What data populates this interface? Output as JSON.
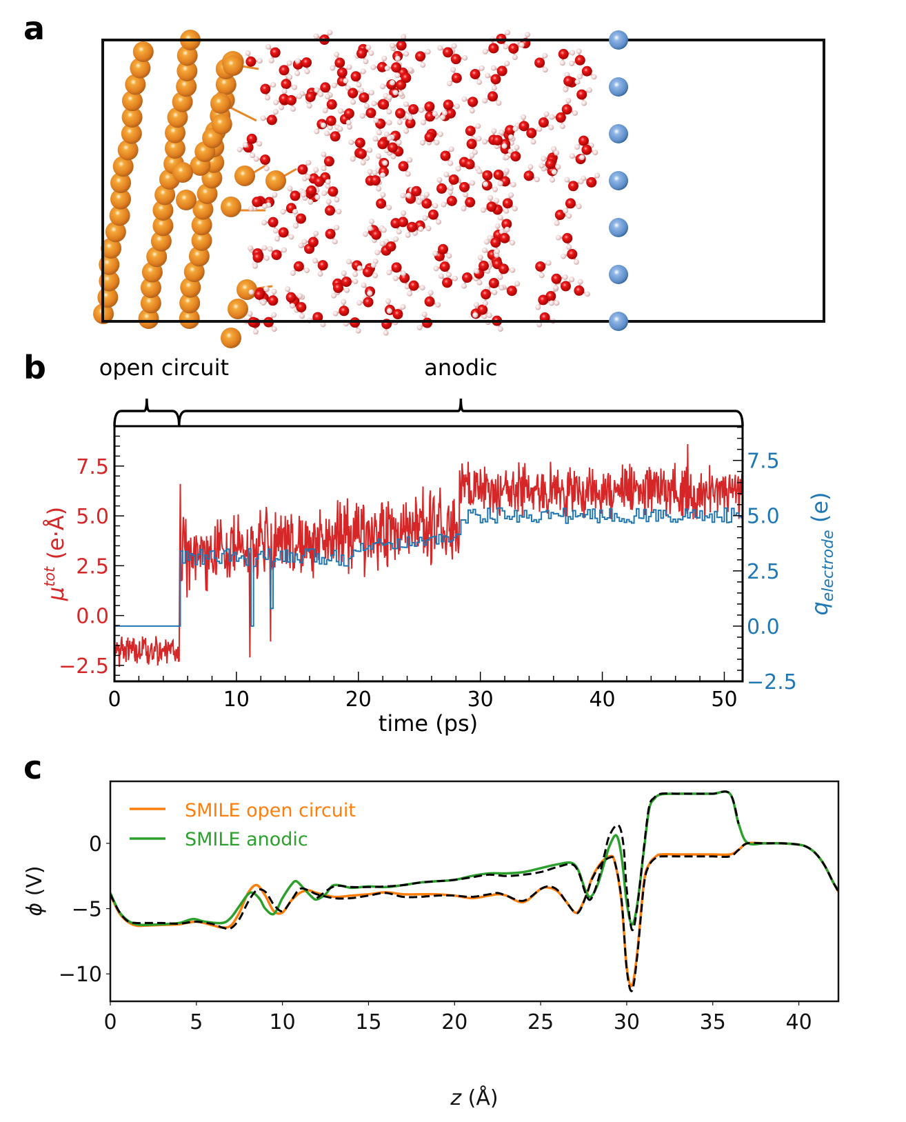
{
  "figure": {
    "panel_labels": {
      "a": "a",
      "b": "b",
      "c": "c"
    }
  },
  "panel_a": {
    "description": "Molecular dynamics snapshot: Cu electrode (orange spheres) at left, water molecules (red O, white H) in middle, counter-electrode atoms (blue spheres) at right, inside a black simulation cell outline",
    "colors": {
      "metal": "#e8872a",
      "oxygen": "#e01010",
      "hydrogen": "#f2dede",
      "counter_electrode": "#6f9bd1",
      "cell": "#000000"
    },
    "counter_electrode_atom_count": 7
  },
  "chart_data": [
    {
      "id": "panel_b",
      "type": "line",
      "title": "",
      "xlabel": "time (ps)",
      "ylabel_left": "μ^tot (e·Å)",
      "ylabel_left_main": "μ",
      "ylabel_left_sup": "tot",
      "ylabel_left_unit": " (e·Å)",
      "ylabel_right": "q_electrode (e)",
      "ylabel_right_main": "q",
      "ylabel_right_sub": "electrode",
      "ylabel_right_unit": " (e)",
      "xlim": [
        0,
        51.5
      ],
      "ylim_left": [
        -3.3,
        9.5
      ],
      "ylim_right": [
        -2.5,
        9.05
      ],
      "xticks": [
        0,
        10,
        20,
        30,
        40,
        50
      ],
      "xtick_labels": [
        "0",
        "10",
        "20",
        "30",
        "40",
        "50"
      ],
      "yticks_left": [
        -2.5,
        0.0,
        2.5,
        5.0,
        7.5
      ],
      "ytick_labels_left": [
        "−2.5",
        "0.0",
        "2.5",
        "5.0",
        "7.5"
      ],
      "yticks_right": [
        -2.5,
        0.0,
        2.5,
        5.0,
        7.5
      ],
      "ytick_labels_right": [
        "−2.5",
        "0.0",
        "2.5",
        "5.0",
        "7.5"
      ],
      "grid": false,
      "regions": [
        {
          "label": "open circuit",
          "x_start": 0,
          "x_end": 5.3
        },
        {
          "label": "anodic",
          "x_start": 5.3,
          "x_end": 51.5
        }
      ],
      "series": [
        {
          "name": "mu_tot",
          "axis": "left",
          "color": "#d62728",
          "description": "noisy dipole trace",
          "segments_mean": [
            {
              "x_start": 0,
              "x_end": 5.3,
              "mean": -1.7,
              "amplitude": 0.9
            },
            {
              "x_start": 5.3,
              "x_end": 28.3,
              "mean_start": 3.0,
              "mean_end": 4.6,
              "amplitude": 2.2
            },
            {
              "x_start": 28.3,
              "x_end": 51.5,
              "mean": 6.3,
              "amplitude": 1.6
            }
          ],
          "notable_points": [
            {
              "x": 5.4,
              "y": 6.6
            },
            {
              "x": 11.1,
              "y": -2.1
            },
            {
              "x": 12.8,
              "y": -1.3
            },
            {
              "x": 47.0,
              "y": 8.6
            }
          ]
        },
        {
          "name": "q_electrode",
          "axis": "right",
          "color": "#1f77b4",
          "description": "step trace",
          "segments_mean": [
            {
              "x_start": 0,
              "x_end": 5.3,
              "value": 0.0
            },
            {
              "x_start": 5.3,
              "x_end": 19.5,
              "mean": 3.1,
              "amplitude": 0.4
            },
            {
              "x_start": 19.5,
              "x_end": 28.3,
              "mean_start": 3.6,
              "mean_end": 4.0,
              "amplitude": 0.25
            },
            {
              "x_start": 28.3,
              "x_end": 51.5,
              "mean": 5.0,
              "amplitude": 0.35
            }
          ],
          "notable_points": [
            {
              "x": 11.1,
              "y": 0.0
            },
            {
              "x": 12.8,
              "y": 0.8
            }
          ]
        }
      ]
    },
    {
      "id": "panel_c",
      "type": "line",
      "title": "",
      "xlabel": "z (Å)",
      "xlabel_italic": "z",
      "xlabel_unit": " (Å)",
      "ylabel": "φ (V)",
      "ylabel_main": "ϕ",
      "ylabel_unit": " (V)",
      "xlim": [
        0,
        42.3
      ],
      "ylim": [
        -12.1,
        4.75
      ],
      "xticks": [
        0,
        5,
        10,
        15,
        20,
        25,
        30,
        35,
        40
      ],
      "xtick_labels": [
        "0",
        "5",
        "10",
        "15",
        "20",
        "25",
        "30",
        "35",
        "40"
      ],
      "yticks": [
        -10,
        -5,
        0
      ],
      "ytick_labels": [
        "−10",
        "−5",
        "0"
      ],
      "grid": false,
      "legend": {
        "placement": "top-left",
        "entries": [
          "SMILE open circuit",
          "SMILE anodic"
        ]
      },
      "series": [
        {
          "name": "SMILE open circuit",
          "color": "#ff7f0e",
          "style": "solid",
          "x": [
            0,
            0.5,
            1,
            1.5,
            2,
            3,
            4,
            5,
            6,
            6.5,
            7,
            7.5,
            8,
            8.5,
            9,
            9.5,
            10,
            10.5,
            11,
            11.5,
            12,
            13,
            14,
            15,
            16,
            17,
            18,
            19,
            20,
            21,
            22,
            22.5,
            23,
            24,
            25,
            25.5,
            26,
            26.5,
            27,
            27.3,
            27.7,
            28,
            28.5,
            29,
            29.3,
            29.7,
            30,
            30.3,
            30.6,
            31,
            31.3,
            31.7,
            32,
            33,
            34,
            35,
            36,
            36.5,
            37,
            38,
            39,
            40,
            40.5,
            41,
            41.5,
            42,
            42.3
          ],
          "y": [
            -3.9,
            -5.3,
            -6.0,
            -6.3,
            -6.3,
            -6.25,
            -6.2,
            -6.0,
            -6.3,
            -6.45,
            -6.3,
            -5.3,
            -3.8,
            -3.2,
            -4.0,
            -5.2,
            -5.3,
            -4.4,
            -3.8,
            -3.6,
            -3.8,
            -4.1,
            -4.0,
            -3.9,
            -3.75,
            -3.9,
            -3.9,
            -3.9,
            -4.0,
            -4.2,
            -4.0,
            -3.9,
            -4.0,
            -4.5,
            -3.5,
            -3.4,
            -3.7,
            -4.5,
            -5.3,
            -5.0,
            -3.8,
            -2.6,
            -1.5,
            -1.0,
            -1.4,
            -4.5,
            -9.5,
            -10.9,
            -8.5,
            -3.0,
            -1.6,
            -1.0,
            -0.85,
            -0.85,
            -0.85,
            -0.85,
            -0.85,
            -0.5,
            0.0,
            0.0,
            0.0,
            -0.1,
            -0.3,
            -0.8,
            -1.7,
            -3.0,
            -3.7
          ]
        },
        {
          "name": "SMILE anodic",
          "color": "#2ca02c",
          "style": "solid",
          "x": [
            0,
            0.5,
            1,
            1.5,
            2,
            3,
            4,
            4.8,
            5.5,
            6.5,
            7,
            7.5,
            8,
            8.3,
            8.7,
            9,
            9.5,
            10,
            10.5,
            10.8,
            11.2,
            11.7,
            12,
            12.5,
            13,
            14,
            15,
            16,
            17,
            18,
            19,
            20,
            21,
            22,
            23,
            24,
            25,
            26,
            26.8,
            27.2,
            27.6,
            27.9,
            28.3,
            28.7,
            29,
            29.4,
            29.7,
            30,
            30.3,
            30.6,
            31,
            31.3,
            31.6,
            32,
            33,
            34,
            35,
            36,
            36.5,
            37,
            38,
            39,
            40,
            40.5,
            41,
            41.5,
            42,
            42.3
          ],
          "y": [
            -3.8,
            -5.2,
            -5.9,
            -6.2,
            -6.25,
            -6.2,
            -6.1,
            -5.8,
            -6.0,
            -6.1,
            -5.7,
            -4.8,
            -3.9,
            -3.8,
            -4.3,
            -5.0,
            -5.4,
            -4.2,
            -3.2,
            -2.9,
            -3.4,
            -4.1,
            -4.3,
            -3.9,
            -3.2,
            -3.4,
            -3.3,
            -3.35,
            -3.2,
            -3.0,
            -2.9,
            -2.8,
            -2.5,
            -2.3,
            -2.3,
            -2.2,
            -1.9,
            -1.6,
            -1.5,
            -2.1,
            -3.6,
            -4.1,
            -3.2,
            -1.5,
            -0.2,
            0.6,
            -1.0,
            -4.5,
            -6.2,
            -4.8,
            -0.5,
            2.6,
            3.4,
            3.75,
            3.8,
            3.8,
            3.8,
            3.8,
            1.5,
            0.05,
            0.0,
            0.0,
            -0.1,
            -0.3,
            -0.8,
            -1.7,
            -3.0,
            -3.6
          ]
        },
        {
          "name": "reference (open circuit)",
          "color": "#000000",
          "style": "dashed",
          "x": [
            0,
            0.5,
            1,
            1.5,
            2,
            3,
            4,
            5,
            6,
            6.5,
            7,
            7.5,
            8,
            8.5,
            9,
            9.5,
            10,
            10.5,
            11,
            11.5,
            12,
            13,
            14,
            15,
            16,
            17,
            18,
            19,
            20,
            21,
            22,
            22.5,
            23,
            24,
            25,
            25.5,
            26,
            26.5,
            27,
            27.3,
            27.7,
            28,
            28.5,
            29,
            29.3,
            29.7,
            30,
            30.3,
            30.6,
            31,
            31.3,
            31.7,
            32,
            33,
            34,
            35,
            36,
            36.5,
            37,
            38,
            39,
            40,
            40.5,
            41,
            41.5,
            42,
            42.3
          ],
          "y": [
            -3.9,
            -5.2,
            -5.95,
            -6.1,
            -6.1,
            -6.1,
            -6.15,
            -6.0,
            -6.2,
            -6.45,
            -6.5,
            -5.8,
            -4.5,
            -3.6,
            -3.7,
            -4.7,
            -5.2,
            -4.4,
            -3.5,
            -3.6,
            -3.9,
            -4.2,
            -4.2,
            -4.0,
            -3.8,
            -4.1,
            -4.1,
            -4.0,
            -4.0,
            -4.1,
            -3.9,
            -3.8,
            -4.0,
            -4.4,
            -3.5,
            -3.3,
            -3.6,
            -4.5,
            -5.3,
            -5.1,
            -3.8,
            -2.7,
            -1.6,
            -1.1,
            -1.4,
            -4.3,
            -9.6,
            -11.3,
            -8.8,
            -3.2,
            -1.7,
            -1.1,
            -1.0,
            -1.0,
            -1.0,
            -1.0,
            -1.0,
            -0.5,
            0.0,
            0.0,
            0.0,
            -0.1,
            -0.3,
            -0.8,
            -1.7,
            -3.0,
            -3.7
          ]
        },
        {
          "name": "reference (anodic)",
          "color": "#000000",
          "style": "dashed",
          "x": [
            12,
            13,
            14,
            15,
            16,
            17,
            18,
            19,
            20,
            21,
            22,
            23,
            24,
            25,
            26,
            26.8,
            27.2,
            27.6,
            27.9,
            28.3,
            28.7,
            29,
            29.5,
            29.8,
            30,
            30.3,
            30.6,
            31,
            31.3,
            31.6,
            32,
            33,
            34,
            35,
            36,
            36.5
          ],
          "y": [
            -4.2,
            -3.3,
            -3.35,
            -3.35,
            -3.3,
            -3.2,
            -3.0,
            -2.9,
            -2.8,
            -2.6,
            -2.4,
            -2.5,
            -2.4,
            -2.2,
            -1.8,
            -1.6,
            -2.2,
            -3.8,
            -4.3,
            -3.0,
            -0.9,
            0.6,
            1.4,
            0.0,
            -3.5,
            -6.6,
            -5.0,
            -0.3,
            2.8,
            3.5,
            3.8,
            3.8,
            3.8,
            3.8,
            3.8,
            1.5
          ]
        }
      ]
    }
  ]
}
